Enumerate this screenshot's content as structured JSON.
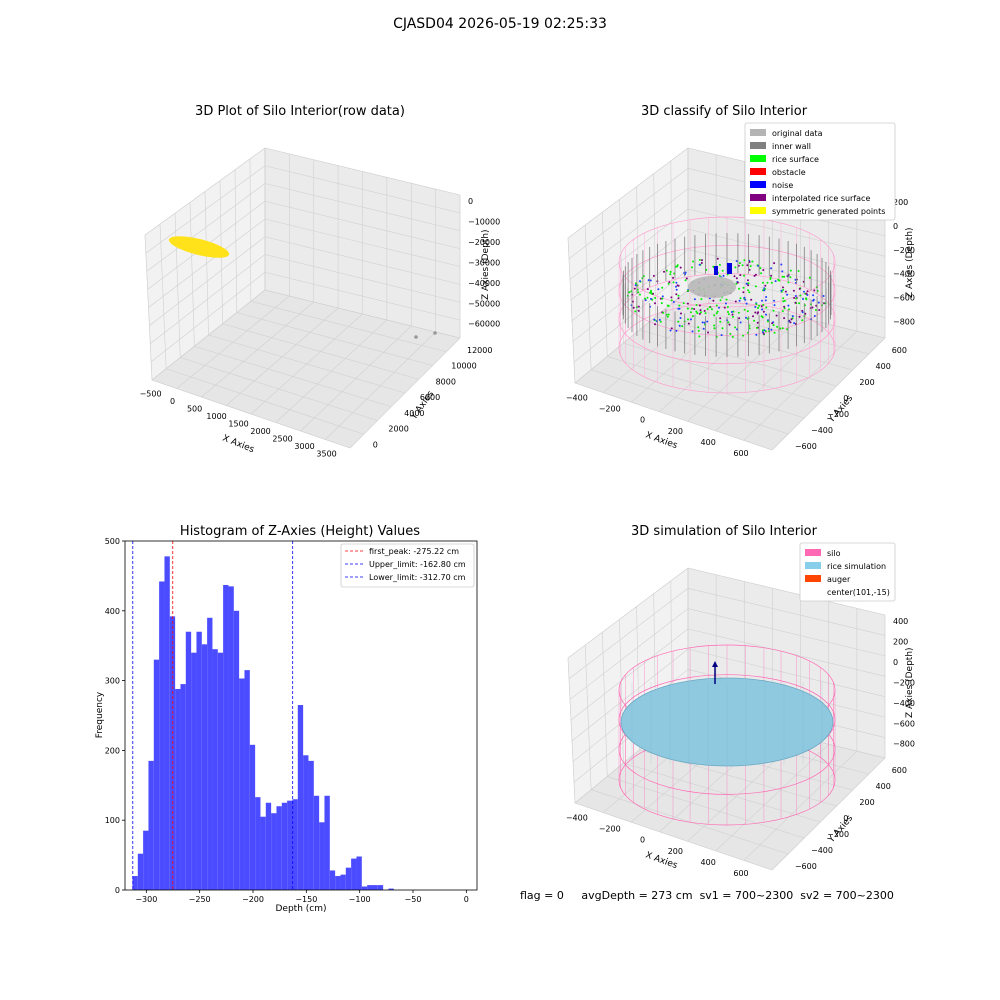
{
  "figure": {
    "suptitle": "CJASD04 2026-05-19 02:25:33"
  },
  "panels": {
    "raw": {
      "title": "3D Plot of Silo Interior(row data)",
      "xlabel": "X Axies",
      "ylabel": "Y Axies",
      "zlabel": "Z Axies (Depth)",
      "xticks": [
        "−500",
        "0",
        "500",
        "1000",
        "1500",
        "2000",
        "2500",
        "3000",
        "3500"
      ],
      "yticks": [
        "0",
        "2000",
        "4000",
        "6000",
        "8000",
        "10000",
        "12000"
      ],
      "zticks": [
        "0",
        "−10000",
        "−20000",
        "−30000",
        "−40000",
        "−50000",
        "−60000"
      ]
    },
    "classify": {
      "title": "3D classify of Silo Interior",
      "xlabel": "X Axies",
      "ylabel": "Y Axies",
      "zlabel": "Z Axies (Depth)",
      "xticks": [
        "−400",
        "−200",
        "0",
        "200",
        "400",
        "600"
      ],
      "yticks": [
        "−600",
        "−400",
        "−200",
        "0",
        "200",
        "400",
        "600"
      ],
      "zticks": [
        "200",
        "0",
        "−200",
        "−400",
        "−600",
        "−800"
      ],
      "legend": [
        {
          "label": "original data",
          "color": "#b4b4b4"
        },
        {
          "label": "inner wall",
          "color": "#808080"
        },
        {
          "label": "rice surface",
          "color": "#00ff00"
        },
        {
          "label": "obstacle",
          "color": "#ff0000"
        },
        {
          "label": "noise",
          "color": "#0000ff"
        },
        {
          "label": "interpolated rice surface",
          "color": "#800080"
        },
        {
          "label": "symmetric generated points",
          "color": "#ffff00"
        }
      ]
    },
    "simulation": {
      "title": "3D simulation of Silo Interior",
      "xlabel": "X Axies",
      "ylabel": "Y Axies",
      "zlabel": "Z Axies (Depth)",
      "xticks": [
        "−400",
        "−200",
        "0",
        "200",
        "400",
        "600"
      ],
      "yticks": [
        "−600",
        "−400",
        "−200",
        "0",
        "200",
        "400",
        "600"
      ],
      "zticks": [
        "400",
        "200",
        "0",
        "−200",
        "−400",
        "−600",
        "−800"
      ],
      "legend": [
        {
          "label": "silo",
          "color": "#ff69b4"
        },
        {
          "label": "rice simulation",
          "color": "#87ceeb"
        },
        {
          "label": "auger",
          "color": "#ff4500"
        },
        {
          "label": "center(101,-15)",
          "color": ""
        }
      ]
    }
  },
  "status": {
    "flag": "flag = 0",
    "avg_depth": "avgDepth = 273 cm",
    "sv1": "sv1 = 700~2300",
    "sv2": "sv2 = 700~2300"
  },
  "chart_data": [
    {
      "type": "scatter",
      "title": "3D Plot of Silo Interior(row data)",
      "xlabel": "X Axies",
      "ylabel": "Y Axies",
      "zlabel": "Z Axies (Depth)",
      "xlim": [
        -600,
        3600
      ],
      "ylim": [
        0,
        13000
      ],
      "zlim": [
        -65000,
        0
      ],
      "grid": true
    },
    {
      "type": "scatter",
      "title": "3D classify of Silo Interior",
      "xlabel": "X Axies",
      "ylabel": "Y Axies",
      "zlabel": "Z Axies (Depth)",
      "legend_position": "top-right",
      "series": [
        {
          "name": "original data",
          "color": "#b4b4b4"
        },
        {
          "name": "inner wall",
          "color": "#808080"
        },
        {
          "name": "rice surface",
          "color": "#00ff00"
        },
        {
          "name": "obstacle",
          "color": "#ff0000"
        },
        {
          "name": "noise",
          "color": "#0000ff"
        },
        {
          "name": "interpolated rice surface",
          "color": "#800080"
        },
        {
          "name": "symmetric generated points",
          "color": "#ffff00"
        }
      ],
      "grid": true
    },
    {
      "type": "bar",
      "title": "Histogram of Z-Axies (Height) Values",
      "xlabel": "Depth (cm)",
      "ylabel": "Frequency",
      "xlim": [
        -320,
        10
      ],
      "ylim": [
        0,
        500
      ],
      "xticks": [
        -300,
        -250,
        -200,
        -150,
        -100,
        -50,
        0
      ],
      "yticks": [
        0,
        100,
        200,
        300,
        400,
        500
      ],
      "bar_color": "#4b4bff",
      "bin_start": -313,
      "bin_width": 5.0,
      "values": [
        20,
        52,
        85,
        185,
        330,
        442,
        478,
        392,
        288,
        295,
        370,
        340,
        370,
        352,
        390,
        345,
        340,
        437,
        435,
        400,
        303,
        315,
        208,
        133,
        105,
        125,
        110,
        120,
        125,
        128,
        130,
        265,
        193,
        185,
        135,
        97,
        135,
        28,
        20,
        22,
        32,
        45,
        48,
        5,
        7,
        7,
        7,
        0,
        2
      ],
      "vlines": [
        {
          "name": "first_peak: -275.22 cm",
          "x": -275.22,
          "color": "#ff0000"
        },
        {
          "name": "Upper_limit: -162.80 cm",
          "x": -162.8,
          "color": "#0000ff"
        },
        {
          "name": "Lower_limit: -312.70 cm",
          "x": -312.7,
          "color": "#0000ff"
        }
      ],
      "legend_position": "top-right"
    },
    {
      "type": "scatter",
      "title": "3D simulation of Silo Interior",
      "xlabel": "X Axies",
      "ylabel": "Y Axies",
      "zlabel": "Z Axies (Depth)",
      "legend_position": "top-right",
      "series": [
        {
          "name": "silo",
          "color": "#ff69b4"
        },
        {
          "name": "rice simulation",
          "color": "#87ceeb"
        },
        {
          "name": "auger",
          "color": "#ff4500"
        },
        {
          "name": "center(101,-15)"
        }
      ],
      "grid": true
    }
  ]
}
